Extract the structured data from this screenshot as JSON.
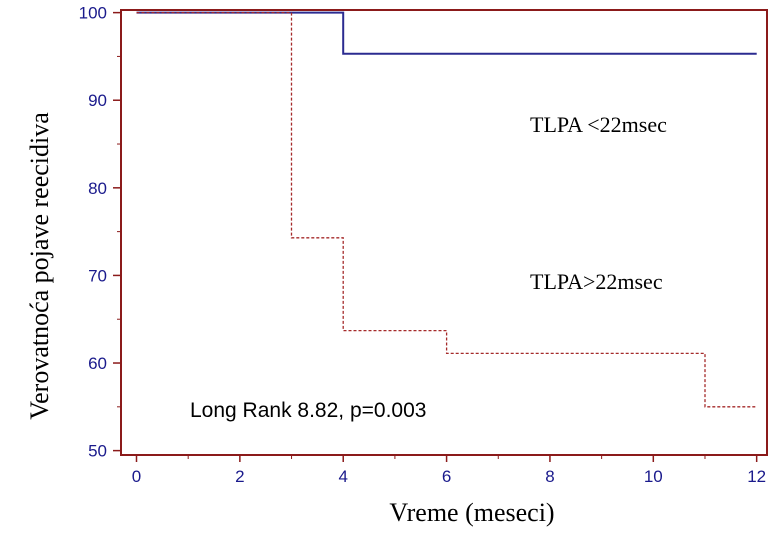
{
  "chart_data": {
    "type": "line",
    "xlabel": "Vreme (meseci)",
    "ylabel": "Verovatnoća pojave reecidiva",
    "xlim": [
      -0.3,
      12.2
    ],
    "ylim": [
      49.5,
      100.3
    ],
    "xticks": [
      0,
      2,
      4,
      6,
      8,
      10,
      12
    ],
    "yticks": [
      50,
      60,
      70,
      80,
      90,
      100
    ],
    "grid": false,
    "series": [
      {
        "name": "TLPA <22msec",
        "style": "solid",
        "color": "#2b2b90",
        "points": [
          [
            0,
            100
          ],
          [
            4,
            100
          ],
          [
            4,
            95.3
          ],
          [
            12,
            95.3
          ]
        ]
      },
      {
        "name": "TLPA>22msec",
        "style": "dashed",
        "color": "#a52a2a",
        "points": [
          [
            0,
            100
          ],
          [
            3,
            100
          ],
          [
            3,
            74.3
          ],
          [
            4,
            74.3
          ],
          [
            4,
            63.7
          ],
          [
            6,
            63.7
          ],
          [
            6,
            61.1
          ],
          [
            11,
            61.1
          ],
          [
            11,
            55.0
          ],
          [
            12,
            55.0
          ]
        ]
      }
    ],
    "annotations": [
      {
        "text": "Long Rank 8.82, p=0.003",
        "x": 1.1,
        "y": 54.3
      }
    ],
    "colors": {
      "frame": "#8b1a1a",
      "tick_text": "#1a1a8c"
    }
  }
}
